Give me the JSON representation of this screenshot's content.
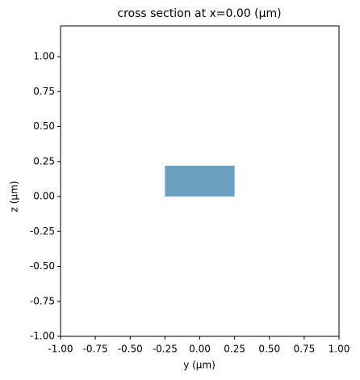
{
  "chart_data": {
    "type": "patch",
    "title": "cross section at x=0.00 (µm)",
    "x_label": "y (µm)",
    "y_label": "z (µm)",
    "xlim": [
      -1,
      1
    ],
    "ylim": [
      -1,
      1.22
    ],
    "xticks": [
      {
        "value": -1,
        "label": "-1.00"
      },
      {
        "value": -0.75,
        "label": "-0.75"
      },
      {
        "value": -0.5,
        "label": "-0.50"
      },
      {
        "value": -0.25,
        "label": "-0.25"
      },
      {
        "value": 0,
        "label": "0.00"
      },
      {
        "value": 0.25,
        "label": "0.25"
      },
      {
        "value": 0.5,
        "label": "0.50"
      },
      {
        "value": 0.75,
        "label": "0.75"
      },
      {
        "value": 1,
        "label": "1.00"
      }
    ],
    "yticks": [
      {
        "value": -1,
        "label": "-1.00"
      },
      {
        "value": -0.75,
        "label": "-0.75"
      },
      {
        "value": -0.5,
        "label": "-0.50"
      },
      {
        "value": -0.25,
        "label": "-0.25"
      },
      {
        "value": 0,
        "label": "0.00"
      },
      {
        "value": 0.25,
        "label": "0.25"
      },
      {
        "value": 0.5,
        "label": "0.50"
      },
      {
        "value": 0.75,
        "label": "0.75"
      },
      {
        "value": 1,
        "label": "1.00"
      }
    ],
    "shapes": [
      {
        "x": [
          -0.25,
          0.25
        ],
        "y": [
          0,
          0.22
        ],
        "color": "#6aa1bf"
      }
    ]
  }
}
